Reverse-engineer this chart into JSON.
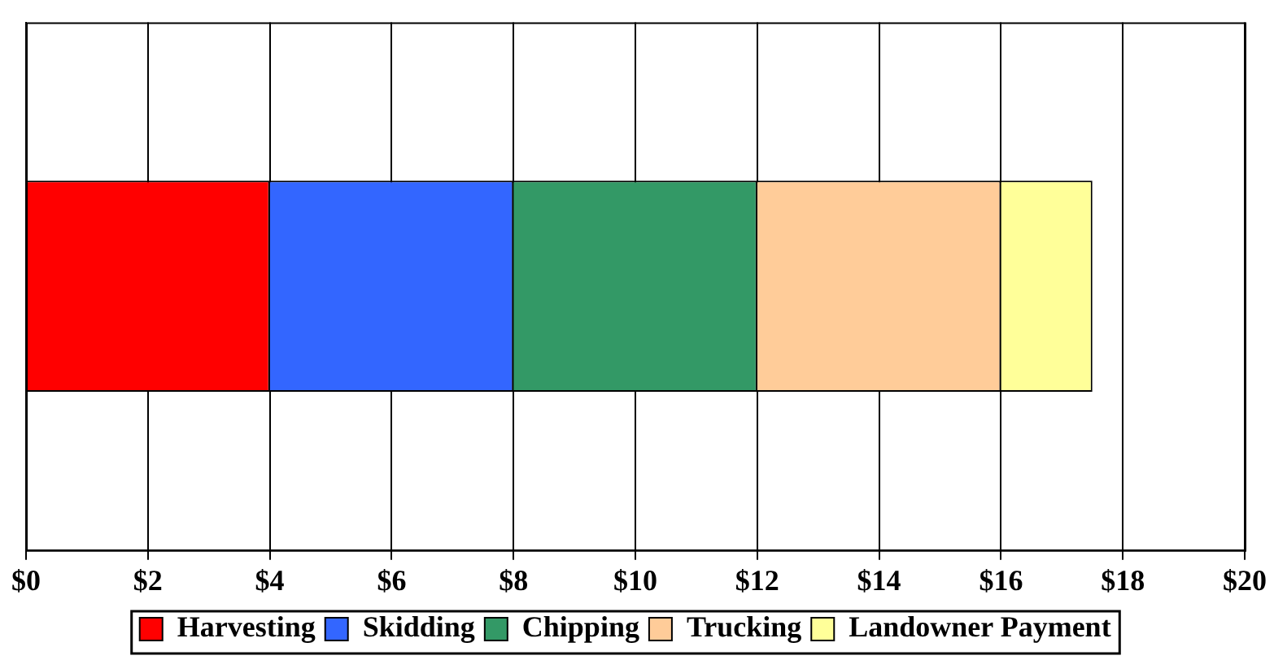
{
  "chart_data": {
    "type": "bar",
    "orientation": "horizontal",
    "stacked": true,
    "categories": [
      null
    ],
    "series": [
      {
        "name": "Harvesting",
        "color": "#ff0000",
        "values": [
          4
        ]
      },
      {
        "name": "Skidding",
        "color": "#3366ff",
        "values": [
          4
        ]
      },
      {
        "name": "Chipping",
        "color": "#339966",
        "values": [
          4
        ]
      },
      {
        "name": "Trucking",
        "color": "#ffcc99",
        "values": [
          4
        ]
      },
      {
        "name": "Landowner Payment",
        "color": "#ffff99",
        "values": [
          1.5
        ]
      }
    ],
    "xlim": [
      0,
      20
    ],
    "xticks": [
      {
        "value": 0,
        "label": "$0"
      },
      {
        "value": 2,
        "label": "$2"
      },
      {
        "value": 4,
        "label": "$4"
      },
      {
        "value": 6,
        "label": "$6"
      },
      {
        "value": 8,
        "label": "$8"
      },
      {
        "value": 10,
        "label": "$10"
      },
      {
        "value": 12,
        "label": "$12"
      },
      {
        "value": 14,
        "label": "$14"
      },
      {
        "value": 16,
        "label": "$16"
      },
      {
        "value": 18,
        "label": "$18"
      },
      {
        "value": 20,
        "label": "$20"
      }
    ],
    "grid": "x",
    "legend": "bottom"
  }
}
